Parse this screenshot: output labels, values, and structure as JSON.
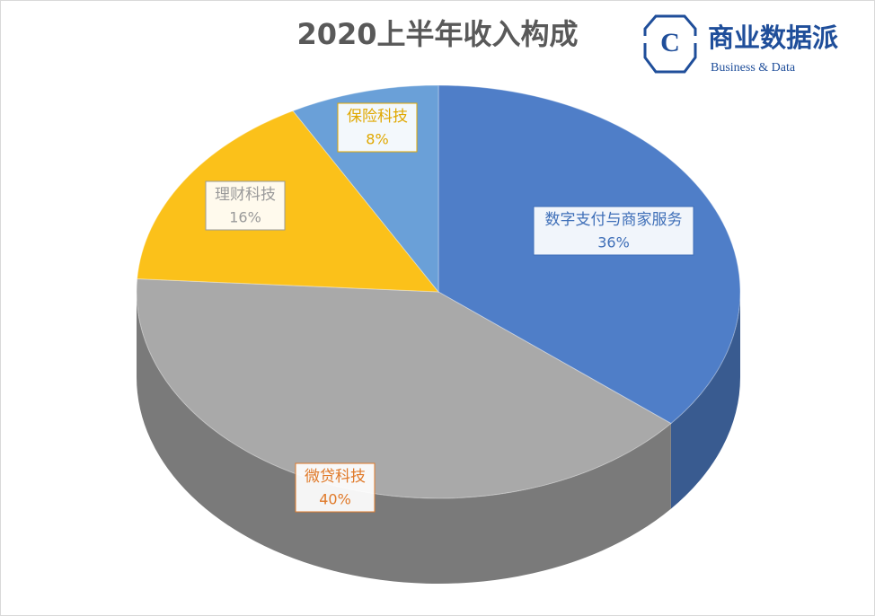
{
  "chart_data": {
    "type": "pie",
    "title": "2020上半年收入构成",
    "categories": [
      "数字支付与商家服务",
      "微贷科技",
      "理财科技",
      "保险科技"
    ],
    "values": [
      36,
      40,
      16,
      8
    ],
    "value_labels": [
      "36%",
      "40%",
      "16%",
      "8%"
    ],
    "colors": [
      "#4f7ec8",
      "#a9a9a9",
      "#fbc11a",
      "#6aa0d8"
    ],
    "label_colors": [
      "#3f6fb8",
      "#e07a2a",
      "#9a9a9a",
      "#e0a800"
    ],
    "logo": {
      "mark": "C",
      "name": "商业数据派",
      "tagline": "Business & Data"
    }
  }
}
